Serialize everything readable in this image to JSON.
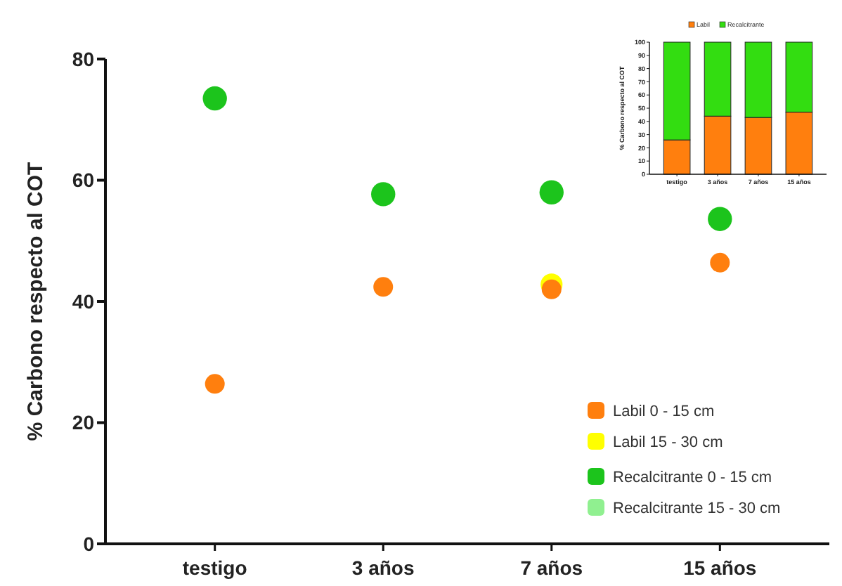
{
  "chart_data": [
    {
      "type": "scatter",
      "ylabel": "% Carbono respecto al COT",
      "categories": [
        "testigo",
        "3 años",
        "7 años",
        "15 años"
      ],
      "ylim": [
        0,
        80
      ],
      "yticks": [
        0,
        20,
        40,
        60,
        80
      ],
      "grid": false,
      "legend": "bottom right",
      "marker": "circle",
      "series": [
        {
          "name": "Labil 0 - 15 cm",
          "color": "#ff7f0e",
          "values": [
            26.4,
            42.4,
            42.0,
            46.4
          ]
        },
        {
          "name": "Labil 15 - 30 cm",
          "color": "#ffff00",
          "values": [
            null,
            null,
            42.8,
            null
          ]
        },
        {
          "name": "Recalcitrante 0 - 15 cm",
          "color": "#1cc41c",
          "values": [
            73.5,
            57.7,
            58.0,
            53.6
          ]
        },
        {
          "name": "Recalcitrante 15 - 30 cm",
          "color": "#90f090",
          "values": [
            null,
            null,
            null,
            null
          ]
        }
      ]
    },
    {
      "type": "bar",
      "stacked": true,
      "ylabel": "% Carbono respecto al COT",
      "categories": [
        "testigo",
        "3 años",
        "7 años",
        "15 años"
      ],
      "ylim": [
        0,
        100
      ],
      "yticks": [
        0,
        10,
        20,
        30,
        40,
        50,
        60,
        70,
        80,
        90,
        100
      ],
      "grid": false,
      "legend": "top",
      "series": [
        {
          "name": "Labil",
          "color": "#ff7f0e",
          "values": [
            26,
            44,
            43,
            47
          ]
        },
        {
          "name": "Recalcitrante",
          "color": "#33dd11",
          "values": [
            74,
            56,
            57,
            53
          ]
        }
      ]
    }
  ]
}
